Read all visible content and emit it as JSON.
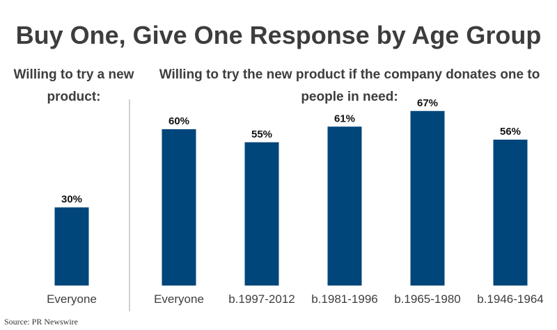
{
  "chart_data": [
    {
      "type": "bar",
      "title": "Buy One, Give One Response by Age Group",
      "subtitle": "Willing to try a new product:",
      "categories": [
        "Everyone"
      ],
      "values": [
        30
      ],
      "value_labels": [
        "30%"
      ],
      "ylim": [
        0,
        100
      ]
    },
    {
      "type": "bar",
      "subtitle": "Willing to try the new product if the company donates one to people in need:",
      "categories": [
        "Everyone",
        "b.1997-2012",
        "b.1981-1996",
        "b.1965-1980",
        "b.1946-1964"
      ],
      "values": [
        60,
        55,
        61,
        67,
        56
      ],
      "value_labels": [
        "60%",
        "55%",
        "61%",
        "67%",
        "56%"
      ],
      "ylim": [
        0,
        100
      ]
    }
  ],
  "source": "Source: PR Newswire",
  "colors": {
    "bar": "#00467a",
    "text": "#3d3d3d",
    "divider": "#c0c0c0",
    "value_text": "#111111"
  }
}
